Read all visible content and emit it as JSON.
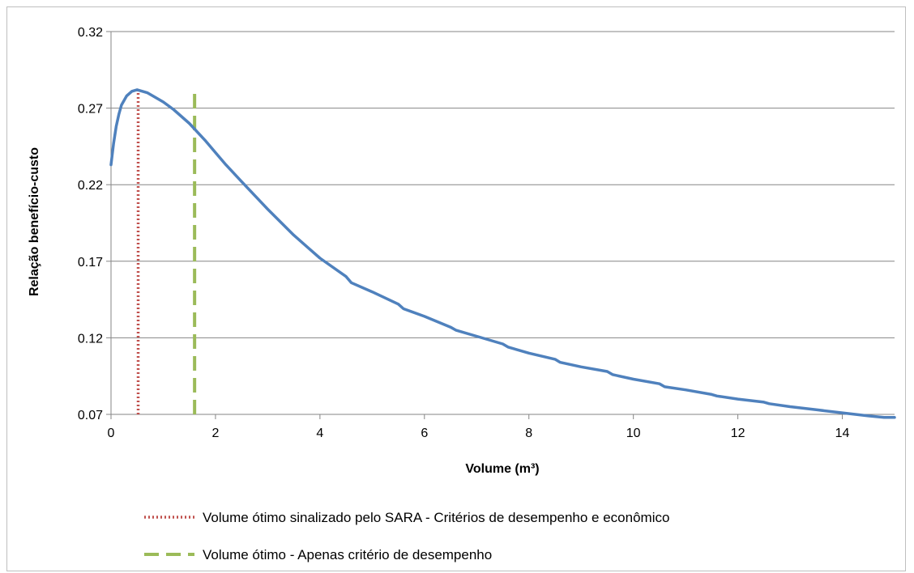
{
  "chart_data": {
    "type": "line",
    "xlabel": "Volume (m³)",
    "ylabel": "Relação benefício-custo",
    "xlim": [
      0,
      15
    ],
    "ylim": [
      0.07,
      0.32
    ],
    "xticks": [
      "0",
      "2",
      "4",
      "6",
      "8",
      "10",
      "12",
      "14"
    ],
    "yticks": [
      "0.07",
      "0.12",
      "0.17",
      "0.22",
      "0.27",
      "0.32"
    ],
    "grid": true,
    "legend_position": "bottom",
    "series": [
      {
        "color": "#4f81bd",
        "x": [
          0.0,
          0.05,
          0.1,
          0.15,
          0.2,
          0.3,
          0.4,
          0.5,
          0.6,
          0.7,
          0.8,
          1.0,
          1.2,
          1.5,
          1.8,
          2.0,
          2.2,
          2.5,
          3.0,
          3.5,
          4.0,
          4.5,
          4.6,
          5.0,
          5.5,
          5.6,
          6.0,
          6.5,
          6.6,
          7.0,
          7.5,
          7.6,
          8.0,
          8.5,
          8.6,
          9.0,
          9.5,
          9.6,
          10.0,
          10.5,
          10.6,
          11.0,
          11.5,
          11.6,
          12.0,
          12.5,
          12.6,
          13.0,
          13.5,
          14.0,
          14.5,
          14.8,
          15.0
        ],
        "y": [
          0.233,
          0.247,
          0.258,
          0.266,
          0.272,
          0.278,
          0.281,
          0.282,
          0.281,
          0.28,
          0.278,
          0.274,
          0.269,
          0.26,
          0.249,
          0.241,
          0.233,
          0.222,
          0.204,
          0.187,
          0.172,
          0.16,
          0.156,
          0.15,
          0.142,
          0.139,
          0.134,
          0.127,
          0.125,
          0.121,
          0.116,
          0.114,
          0.11,
          0.106,
          0.104,
          0.101,
          0.098,
          0.096,
          0.093,
          0.09,
          0.088,
          0.086,
          0.083,
          0.082,
          0.08,
          0.078,
          0.077,
          0.075,
          0.073,
          0.071,
          0.069,
          0.068,
          0.068
        ]
      }
    ],
    "markers": [
      {
        "label": "Volume ótimo sinalizado pelo SARA - Critérios de desempenho e econômico",
        "x": 0.52,
        "y_top": 0.282,
        "color": "#c0504d",
        "style": "dotted"
      },
      {
        "label": "Volume ótimo - Apenas critério de desempenho",
        "x": 1.6,
        "y_top": 0.28,
        "color": "#9bbb59",
        "style": "dashed"
      }
    ]
  }
}
